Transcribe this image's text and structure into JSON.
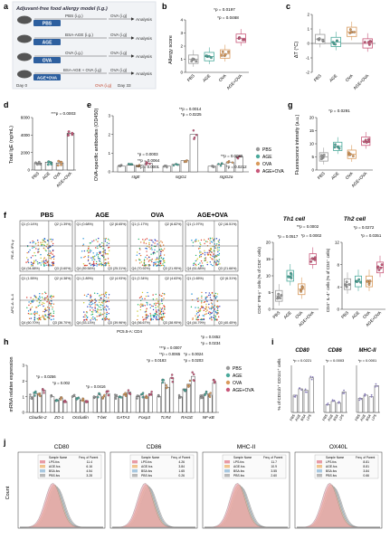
{
  "groups": [
    "PBS",
    "AGE",
    "OVA",
    "AGE+OVA"
  ],
  "groups_vert": [
    "PBS",
    "AGE",
    "OVA",
    "AGE+OVA"
  ],
  "colors": {
    "PBS": "#9a9a9a",
    "AGE": "#4aa99b",
    "OVA": "#d99a5c",
    "AGE+OVA": "#c8587a"
  },
  "panel_letters": {
    "a": "a",
    "b": "b",
    "c": "c",
    "d": "d",
    "e": "e",
    "f": "f",
    "g": "g",
    "h": "h",
    "i": "i",
    "j": "j"
  },
  "panel_a": {
    "title": "Adjuvant-free food allergy model (i.g.)",
    "rows": [
      {
        "label": "PBS",
        "top": "PBS (i.g.)",
        "bottom": "OVA (i.g)"
      },
      {
        "label": "AGE",
        "top": "BSA-AGE (i.g.)",
        "bottom": "OVA (i.g)"
      },
      {
        "label": "OVA",
        "top": "OVA (i.g.)",
        "bottom": "OVA (i.g)"
      },
      {
        "label": "AGE+OVA",
        "top": "BSA-AGE + OVA (i.g)",
        "bottom": "OVA (i.g)"
      }
    ],
    "analysis": "Analysis",
    "day0": "Day 0",
    "day33": "Day 33",
    "ova_ig": "OVA (i.g)"
  },
  "panel_b": {
    "ylabel": "Allergy score",
    "ticks": [
      "0",
      "1",
      "2",
      "3",
      "4"
    ],
    "p1": "*p = 0.0197",
    "p2": "*p = 0.0468"
  },
  "panel_c": {
    "ylabel": "ΔT (°C)",
    "ticks": [
      "-2",
      "-1",
      "0",
      "1",
      "2"
    ]
  },
  "panel_d": {
    "ylabel": "Total IgE (ng/mL)",
    "ticks": [
      "0",
      "2000",
      "4000",
      "6000"
    ],
    "p1": "***p = 0.0003"
  },
  "panel_e": {
    "ylabel": "OVA-specific antibodies (OD450)",
    "ticks": [
      "0",
      "1",
      "2",
      "3"
    ],
    "categories": [
      "sIgE",
      "sIgG1",
      "sIgG2a"
    ],
    "pvals": [
      "*p = 0.0003",
      "**p = 0.0064",
      "***p = 0.0001",
      "**p = 0.0014",
      "*p = 0.0225",
      "**p = 0.0089",
      "*p = 0.0212"
    ],
    "legend": [
      "PBS",
      "AGE",
      "OVA",
      "AGE+OVA"
    ]
  },
  "panel_g": {
    "ylabel": "Fluorescence intensity (a.u.)",
    "ticks": [
      "0",
      "5",
      "10",
      "15",
      "20"
    ],
    "p1": "*p = 0.0291"
  },
  "panel_f": {
    "cols": [
      "PBS",
      "AGE",
      "OVA",
      "AGE+OVA"
    ],
    "row1_y": "PE-A: IFN-γ",
    "row2_y": "APC-A: IL-4",
    "xlabel": "PC5.5-A: CD4",
    "row1_q": [
      [
        "Q1 (0.14%)",
        "Q2 (1.39%)",
        "Q4 (94.88%)",
        "Q3 (3.60%)"
      ],
      [
        "Q1 (0.68%)",
        "Q2 (8.65%)",
        "Q4 (89.56%)",
        "Q3 (25.31%)"
      ],
      [
        "Q1 (1.17%)",
        "Q2 (6.82%)",
        "Q4 (70.92%)",
        "Q3 (21.95%)"
      ],
      [
        "Q1 (1.97%)",
        "Q2 (16.51%)",
        "Q4 (61.88%)",
        "Q3 (21.66%)"
      ]
    ],
    "row2_q": [
      [
        "Q1 (1.55%)",
        "Q2 (4.38%)",
        "Q4 (60.70%)",
        "Q3 (36.70%)"
      ],
      [
        "Q1 (1.89%)",
        "Q2 (4.93%)",
        "Q4 (53.13%)",
        "Q3 (39.96%)"
      ],
      [
        "Q1 (2.34%)",
        "Q2 (4.63%)",
        "Q4 (56.67%)",
        "Q3 (38.95%)"
      ],
      [
        "Q1 (1.65%)",
        "Q2 (6.31%)",
        "Q4 (44.79%)",
        "Q3 (40.45%)"
      ]
    ],
    "th1": {
      "title": "Th1 cell",
      "ylabel": "CD4⁺ IFN-γ⁺ cells (% of CD4⁺ cells)",
      "ticks": [
        "0",
        "5",
        "10",
        "15",
        "20"
      ],
      "pvals": [
        "**p = 0.0002",
        "*p = 0.0517",
        "*p = 0.0002"
      ]
    },
    "th2": {
      "title": "Th2 cell",
      "ylabel": "CD4⁺ IL-4⁺ cells (% of CD4⁺ cells)",
      "ticks": [
        "0",
        "4",
        "8",
        "12"
      ],
      "pvals": [
        "*p = 0.0272",
        "*p = 0.0351"
      ]
    }
  },
  "panel_h": {
    "ylabel": "mRNA relative expression",
    "ticks": [
      "0",
      "1",
      "2",
      "3"
    ],
    "categories": [
      "Claudin-2",
      "ZO-1",
      "Occludin",
      "T-bet",
      "GATA3",
      "Foxp3",
      "TLR4",
      "RAGE",
      "NF-κB"
    ],
    "pvals": [
      "*p = 0.0256",
      "*p = 0.002",
      "*p = 0.0416",
      "***p = 0.0007",
      "**p = 0.0065",
      "*p = 0.0183",
      "*p = 0.0024",
      "*p = 0.0203",
      "*p = 0.0452",
      "*p = 0.0234"
    ],
    "legend": [
      "PBS",
      "AGE",
      "OVA",
      "AGE+OVA"
    ]
  },
  "panel_i": {
    "ylabel": "% of CD11b⁺ CD11c⁺ cells",
    "titles": [
      "CD80",
      "CD86",
      "MHC-II"
    ],
    "xgroups": [
      "PBS",
      "AGE",
      "BSA",
      "LPS"
    ],
    "pvals": [
      "*p = 0.0221",
      "*p = 0.0003",
      "*p = 0.0001"
    ]
  },
  "panel_j": {
    "titles": [
      "CD80",
      "CD86",
      "MHC-II",
      "OX40L"
    ],
    "ylabel": "Count",
    "table_head": [
      "Sample Name",
      "Freq. of Parent"
    ],
    "rows": [
      [
        [
          "LPS.fcs",
          "11.4"
        ],
        [
          "AGE.fcs",
          "6.16"
        ],
        [
          "BSA.fcs",
          "4.54"
        ],
        [
          "PBS.fcs",
          "3.28"
        ]
      ],
      [
        [
          "LPS.fcs",
          "4.26"
        ],
        [
          "AGE.fcs",
          "3.84"
        ],
        [
          "BSA.fcs",
          "1.65"
        ],
        [
          "PBS.fcs",
          "0.26"
        ]
      ],
      [
        [
          "LPS.fcs",
          "11.7"
        ],
        [
          "AGE.fcs",
          "10.9"
        ],
        [
          "BSA.fcs",
          "3.55"
        ],
        [
          "PBS.fcs",
          "2.60"
        ]
      ],
      [
        [
          "LPS.fcs",
          "8.81"
        ],
        [
          "AGE.fcs",
          "8.81"
        ],
        [
          "BSA.fcs",
          "3.84"
        ],
        [
          "PBS.fcs",
          "0.66"
        ]
      ]
    ]
  },
  "chart_data": [
    {
      "type": "bar",
      "title": "",
      "ylabel": "Allergy score",
      "categories": [
        "PBS",
        "AGE",
        "OVA",
        "AGE+OVA"
      ],
      "values": [
        1.0,
        1.2,
        1.4,
        2.6
      ],
      "ylim": [
        0,
        4
      ]
    },
    {
      "type": "bar",
      "title": "",
      "ylabel": "ΔT (°C)",
      "categories": [
        "PBS",
        "AGE",
        "OVA",
        "AGE+OVA"
      ],
      "values": [
        0.3,
        0.1,
        0.8,
        0.0
      ],
      "ylim": [
        -2,
        2
      ]
    },
    {
      "type": "bar",
      "title": "",
      "ylabel": "Total IgE (ng/mL)",
      "categories": [
        "PBS",
        "AGE",
        "OVA",
        "AGE+OVA"
      ],
      "values": [
        800,
        900,
        800,
        4200
      ],
      "ylim": [
        0,
        6000
      ]
    },
    {
      "type": "bar",
      "title": "",
      "ylabel": "OVA-specific antibodies (OD450)",
      "categories": [
        "sIgE",
        "sIgG1",
        "sIgG2a"
      ],
      "series": [
        {
          "name": "PBS",
          "values": [
            0.3,
            0.3,
            0.3
          ]
        },
        {
          "name": "AGE",
          "values": [
            0.35,
            0.4,
            0.4
          ]
        },
        {
          "name": "OVA",
          "values": [
            0.35,
            0.6,
            0.5
          ]
        },
        {
          "name": "AGE+OVA",
          "values": [
            0.45,
            2.0,
            0.8
          ]
        }
      ],
      "ylim": [
        0,
        3
      ]
    },
    {
      "type": "bar",
      "title": "",
      "ylabel": "Fluorescence intensity (a.u.)",
      "categories": [
        "PBS",
        "AGE",
        "OVA",
        "AGE+OVA"
      ],
      "values": [
        5,
        9,
        6,
        11
      ],
      "ylim": [
        0,
        20
      ]
    },
    {
      "type": "bar",
      "title": "Th1 cell",
      "categories": [
        "PBS",
        "AGE",
        "OVA",
        "AGE+OVA"
      ],
      "values": [
        4,
        10,
        6,
        15
      ],
      "ylim": [
        0,
        20
      ]
    },
    {
      "type": "bar",
      "title": "Th2 cell",
      "categories": [
        "PBS",
        "AGE",
        "OVA",
        "AGE+OVA"
      ],
      "values": [
        4.5,
        5,
        5,
        7.5
      ],
      "ylim": [
        0,
        12
      ]
    },
    {
      "type": "bar",
      "title": "",
      "ylabel": "mRNA relative expression",
      "categories": [
        "Claudin-2",
        "ZO-1",
        "Occludin",
        "T-bet",
        "GATA3",
        "Foxp3",
        "TLR4",
        "RAGE",
        "NF-κB"
      ],
      "series": [
        {
          "name": "PBS",
          "values": [
            1,
            1,
            1,
            1,
            1,
            1,
            1,
            1,
            1
          ]
        },
        {
          "name": "AGE",
          "values": [
            1.2,
            0.8,
            0.9,
            1.1,
            1.0,
            1.1,
            1.9,
            1.5,
            1.2
          ]
        },
        {
          "name": "OVA",
          "values": [
            1.1,
            0.9,
            0.8,
            1.0,
            1.1,
            1.0,
            1.6,
            1.8,
            1.1
          ]
        },
        {
          "name": "AGE+OVA",
          "values": [
            1.4,
            0.7,
            0.7,
            1.2,
            1.3,
            1.2,
            2.2,
            2.3,
            1.9
          ]
        }
      ],
      "ylim": [
        0,
        3
      ]
    }
  ]
}
